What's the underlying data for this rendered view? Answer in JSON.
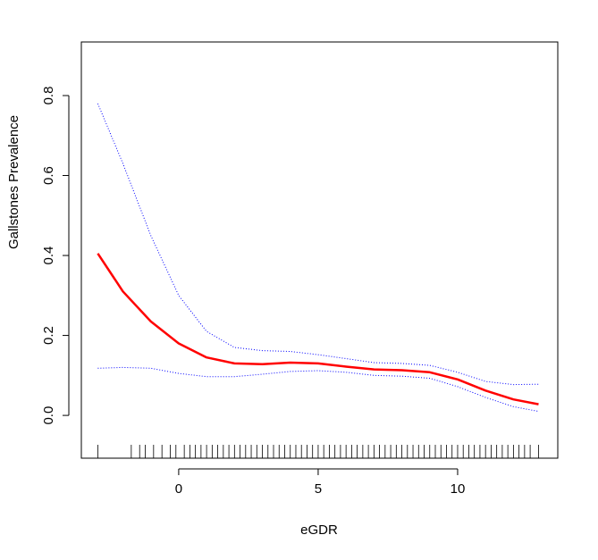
{
  "chart_data": {
    "type": "line",
    "xlabel": "eGDR",
    "ylabel": "Gallstones Prevalence",
    "x": [
      -2.9,
      -2,
      -1,
      0,
      1,
      2,
      3,
      4,
      5,
      6,
      7,
      8,
      9,
      10,
      11,
      12,
      12.9
    ],
    "series": [
      {
        "name": "estimate",
        "color": "#ff0000",
        "linestyle": "solid",
        "width": 2.5,
        "values": [
          0.405,
          0.31,
          0.235,
          0.18,
          0.145,
          0.13,
          0.128,
          0.132,
          0.13,
          0.122,
          0.115,
          0.113,
          0.108,
          0.09,
          0.062,
          0.04,
          0.028
        ]
      },
      {
        "name": "upper",
        "color": "#0000ff",
        "linestyle": "dotted",
        "width": 1,
        "values": [
          0.78,
          0.63,
          0.45,
          0.3,
          0.21,
          0.17,
          0.162,
          0.16,
          0.152,
          0.142,
          0.132,
          0.13,
          0.125,
          0.108,
          0.085,
          0.077,
          0.078
        ]
      },
      {
        "name": "lower",
        "color": "#0000ff",
        "linestyle": "dotted",
        "width": 1,
        "values": [
          0.118,
          0.12,
          0.118,
          0.105,
          0.097,
          0.097,
          0.103,
          0.11,
          0.112,
          0.108,
          0.1,
          0.098,
          0.093,
          0.072,
          0.045,
          0.022,
          0.01
        ]
      }
    ],
    "rug": [
      -2.9,
      -1.7,
      -1.4,
      -1.2,
      -0.9,
      -0.6,
      -0.3,
      -0.1,
      0.2,
      0.4,
      0.6,
      0.8,
      1.0,
      1.2,
      1.4,
      1.6,
      1.8,
      2.0,
      2.2,
      2.4,
      2.6,
      2.8,
      3.0,
      3.2,
      3.4,
      3.6,
      3.8,
      4.0,
      4.2,
      4.4,
      4.6,
      4.8,
      5.0,
      5.2,
      5.4,
      5.6,
      5.8,
      6.0,
      6.2,
      6.4,
      6.6,
      6.8,
      7.0,
      7.2,
      7.4,
      7.6,
      7.8,
      8.0,
      8.2,
      8.4,
      8.6,
      8.8,
      9.0,
      9.2,
      9.4,
      9.6,
      9.8,
      10.0,
      10.2,
      10.4,
      10.6,
      10.8,
      11.0,
      11.2,
      11.4,
      11.6,
      11.8,
      12.0,
      12.2,
      12.4,
      12.6,
      12.9
    ],
    "xlim": [
      -3.49,
      13.59
    ],
    "ylim": [
      -0.107,
      0.934
    ],
    "xticks": [
      0,
      5,
      10
    ],
    "yticks": [
      {
        "value": 0,
        "label": "0.0"
      },
      0.2,
      0.4,
      0.6,
      0.8
    ],
    "grid": false
  }
}
